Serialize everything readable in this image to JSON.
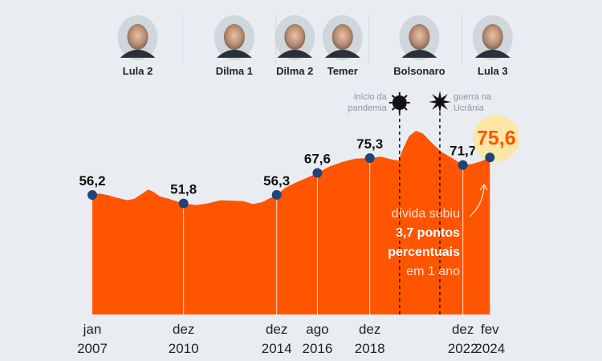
{
  "chart_data": {
    "type": "area",
    "title": "",
    "xlabel": "",
    "ylabel": "",
    "xlim": [
      2007.0,
      2024.08
    ],
    "ylim": [
      -5.6,
      95
    ],
    "grid": false,
    "colors": {
      "area": "#ff5500",
      "dot": "#1f4479",
      "highlight": "#fde7a6",
      "highlight_text": "#ff5500",
      "background": "#e9edf1"
    },
    "series": [
      {
        "name": "dívida",
        "x": [
          2007.0,
          2007.3,
          2007.7,
          2008.0,
          2008.5,
          2008.8,
          2009.1,
          2009.4,
          2009.6,
          2009.9,
          2010.3,
          2010.92,
          2011.5,
          2012.0,
          2012.5,
          2013.0,
          2013.5,
          2013.9,
          2014.3,
          2014.92,
          2015.3,
          2015.8,
          2016.2,
          2016.67,
          2017.2,
          2017.8,
          2018.3,
          2018.92,
          2019.4,
          2019.9,
          2020.15,
          2020.35,
          2020.6,
          2020.9,
          2021.2,
          2021.6,
          2022.0,
          2022.5,
          2022.92,
          2023.3,
          2023.7,
          2024.08
        ],
        "values": [
          56.2,
          57.0,
          56.0,
          55.0,
          53.5,
          54.2,
          56.5,
          59.0,
          58.0,
          55.5,
          54.2,
          51.8,
          51.0,
          52.0,
          53.5,
          53.3,
          53.0,
          51.5,
          52.5,
          56.3,
          60.0,
          63.0,
          65.0,
          67.6,
          71.0,
          73.5,
          75.0,
          75.3,
          76.0,
          74.5,
          74.0,
          80.0,
          86.5,
          89.4,
          88.0,
          83.0,
          78.5,
          75.0,
          71.7,
          72.2,
          73.6,
          75.6
        ]
      }
    ],
    "points": [
      {
        "x": 2007.0,
        "value": 56.2,
        "label": "56,2",
        "tick": [
          "jan",
          "2007"
        ]
      },
      {
        "x": 2010.92,
        "value": 51.8,
        "label": "51,8",
        "tick": [
          "dez",
          "2010"
        ]
      },
      {
        "x": 2014.92,
        "value": 56.3,
        "label": "56,3",
        "tick": [
          "dez",
          "2014"
        ]
      },
      {
        "x": 2016.67,
        "value": 67.6,
        "label": "67,6",
        "tick": [
          "ago",
          "2016"
        ]
      },
      {
        "x": 2018.92,
        "value": 75.3,
        "label": "75,3",
        "tick": [
          "dez",
          "2018"
        ]
      },
      {
        "x": 2022.92,
        "value": 71.7,
        "label": "71,7",
        "tick": [
          "dez",
          "2022"
        ]
      },
      {
        "x": 2024.08,
        "value": 75.6,
        "label": "75,6",
        "tick": [
          "fev",
          "2024"
        ],
        "highlight": true
      }
    ],
    "events": [
      {
        "x": 2020.2,
        "label": [
          "início da",
          "pandemia"
        ],
        "icon": "virus-icon"
      },
      {
        "x": 2021.93,
        "label": [
          "guerra na",
          "Ucrânia"
        ],
        "icon": "explosion-icon"
      }
    ],
    "annotation": [
      "dívida subiu",
      "3,7 pontos",
      "percentuais",
      "em 1 ano"
    ],
    "presidents": [
      {
        "name": "Lula 2",
        "x": 2008.95
      },
      {
        "name": "Dilma 1",
        "x": 2013.1
      },
      {
        "name": "Dilma 2",
        "x": 2015.7
      },
      {
        "name": "Temer",
        "x": 2017.75
      },
      {
        "name": "Bolsonaro",
        "x": 2021.05
      },
      {
        "name": "Lula 3",
        "x": 2024.2
      }
    ],
    "president_separators": [
      2010.92,
      2014.92,
      2018.92,
      2022.92
    ]
  }
}
